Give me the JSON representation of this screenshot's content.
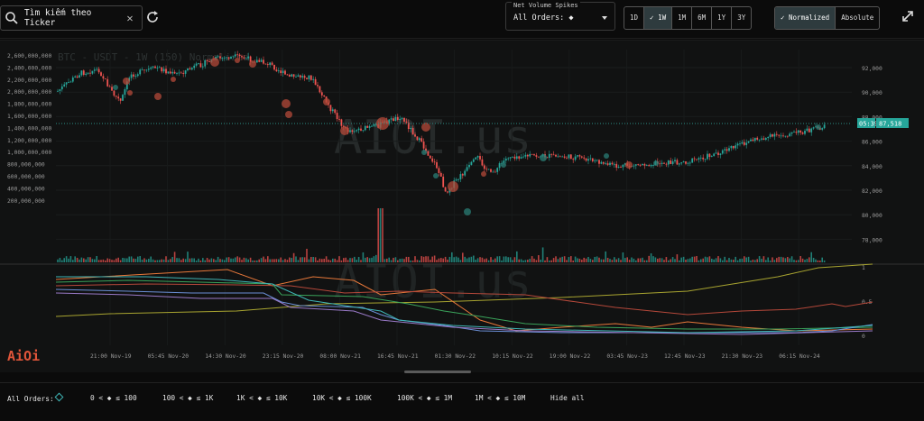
{
  "search": {
    "placeholder": "Tìm kiếm theo Ticker",
    "icon": "search-icon",
    "clear_icon": "close-icon"
  },
  "refresh_icon": "refresh-icon",
  "net_volume": {
    "label": "Net Volume Spikes",
    "value": "All Orders: ◆"
  },
  "ranges": [
    "1D",
    "1W",
    "1M",
    "6M",
    "1Y",
    "3Y"
  ],
  "selected_range": "1W",
  "modes": [
    "Normalized",
    "Absolute"
  ],
  "selected_mode": "Normalized",
  "expand_icon": "expand-icon",
  "chart": {
    "watermark_title": "BTC - USDT - 1W (150) Normalized",
    "watermark_brand": "AIOI.us",
    "logo": "AiOi",
    "left_axis": [
      "2,600,000,000",
      "2,400,000,000",
      "2,200,000,000",
      "2,000,000,000",
      "1,800,000,000",
      "1,600,000,000",
      "1,400,000,000",
      "1,200,000,000",
      "1,000,000,000",
      "800,000,000",
      "600,000,000",
      "400,000,000",
      "200,000,000"
    ],
    "right_axis": [
      "92,000",
      "90,000",
      "88,000",
      "86,000",
      "84,000",
      "82,000",
      "80,000",
      "78,000"
    ],
    "lower_axis": [
      "1",
      "0.5",
      "0"
    ],
    "price_tag_time": "05:39",
    "price_tag_value": "87,518",
    "x_labels": [
      "21:00 Nov-19",
      "05:45 Nov-20",
      "14:30 Nov-20",
      "23:15 Nov-20",
      "08:00 Nov-21",
      "16:45 Nov-21",
      "01:30 Nov-22",
      "10:15 Nov-22",
      "19:00 Nov-22",
      "03:45 Nov-23",
      "12:45 Nov-23",
      "21:30 Nov-23",
      "06:15 Nov-24"
    ],
    "colors": {
      "up": "#26a69a",
      "down": "#ef5350",
      "bubble_down": "#b44a3a",
      "bubble_up": "#2a7d75",
      "line_olive": "#a8a430",
      "line_orange": "#e8783a",
      "line_rust": "#b5483a",
      "line_green": "#3aa35a",
      "line_blue": "#6b8fd6",
      "line_purple": "#9a7ac8",
      "line_teal": "#3fb5b5"
    }
  },
  "legend": [
    {
      "label": "All Orders:",
      "color": "#3fb5b5"
    },
    {
      "label": "0 < ◆ ≤ 100",
      "color": "#d9a640"
    },
    {
      "label": "100 < ◆ ≤ 1K",
      "color": "#e8783a"
    },
    {
      "label": "1K < ◆ ≤ 10K",
      "color": "#3aa35a"
    },
    {
      "label": "10K < ◆ ≤ 100K",
      "color": "#b5483a"
    },
    {
      "label": "100K < ◆ ≤ 1M",
      "color": "#6b8fd6"
    },
    {
      "label": "1M < ◆ ≤ 10M",
      "color": "#a07860"
    },
    {
      "label": "Hide all",
      "color": ""
    }
  ]
}
